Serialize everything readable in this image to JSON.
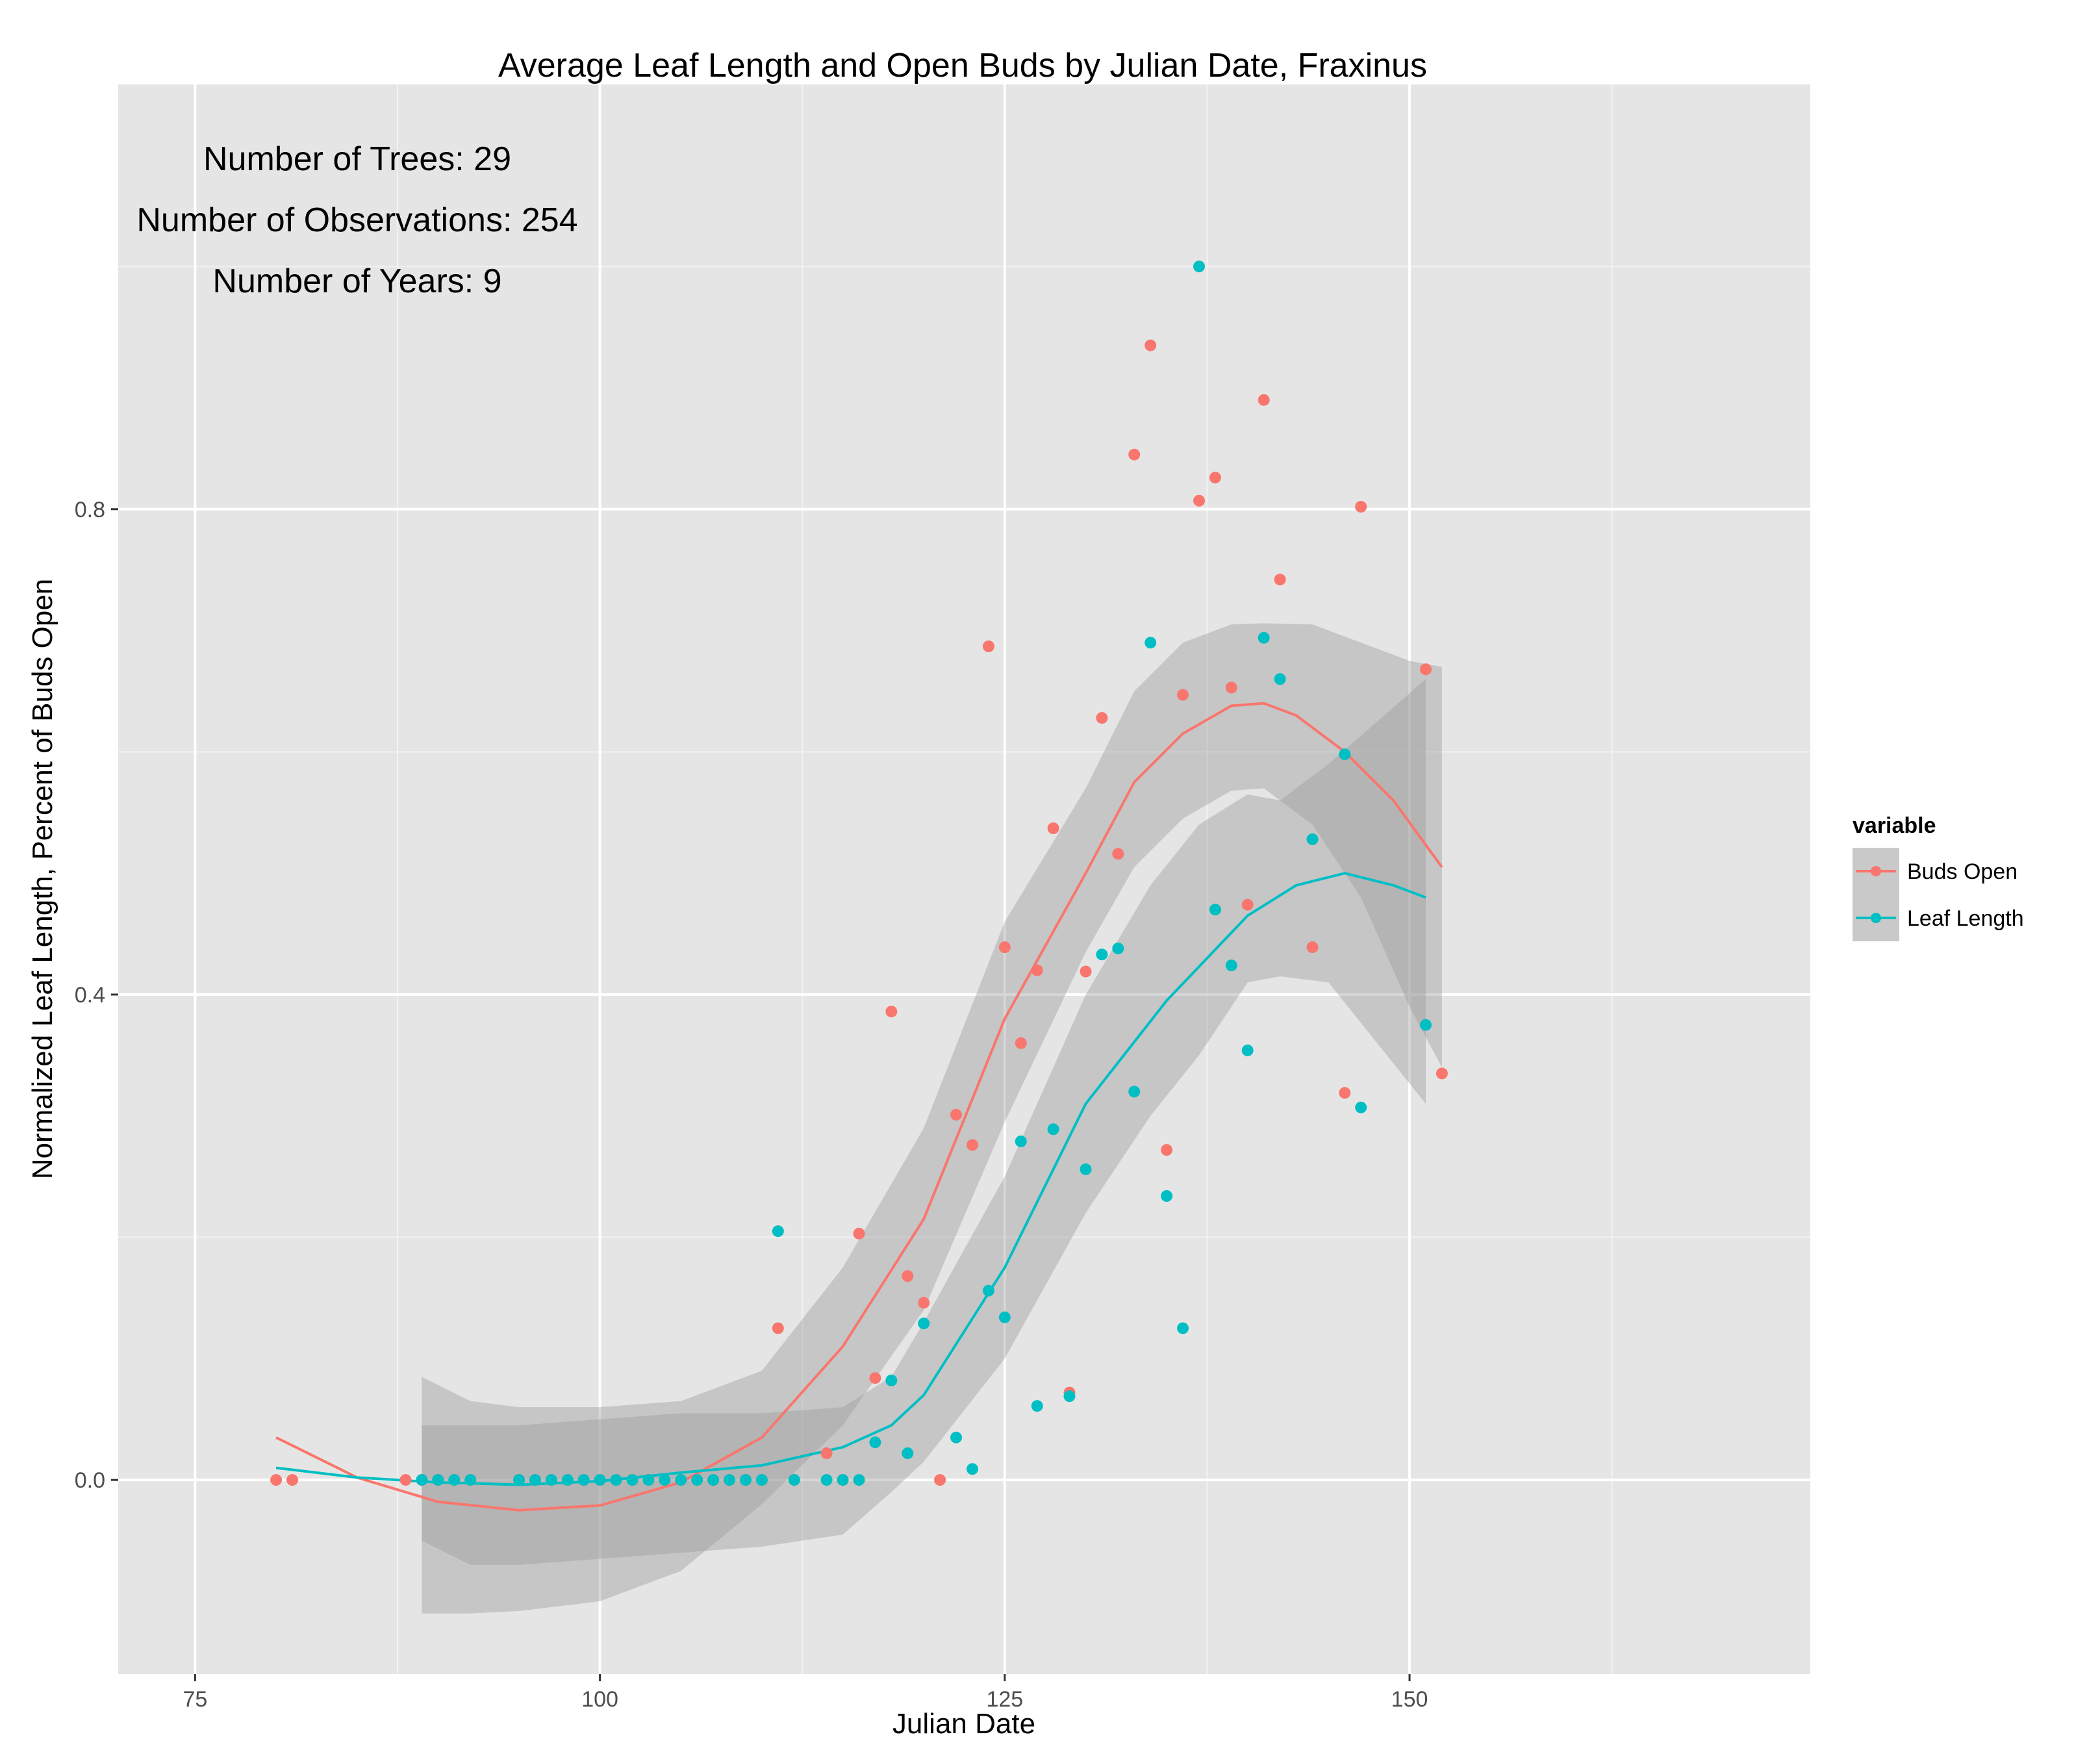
{
  "chart_data": {
    "type": "scatter",
    "title": "Average Leaf Length and Open Buds by Julian Date, Fraxinus",
    "xlabel": "Julian Date",
    "ylabel": "Normalized Leaf Length, Percent of Buds Open",
    "xlim": [
      70.25,
      174.75
    ],
    "ylim": [
      -0.16,
      1.15
    ],
    "x_ticks": [
      75,
      100,
      125,
      150
    ],
    "x_tick_labels": [
      "75",
      "100",
      "125",
      "150"
    ],
    "y_ticks": [
      0.0,
      0.4,
      0.8
    ],
    "y_tick_labels": [
      "0.0",
      "0.4",
      "0.8"
    ],
    "grid": true,
    "annotations": [
      "Number of Trees: 29",
      "Number of Observations: 254",
      "Number of Years: 9"
    ],
    "legend": {
      "title": "variable",
      "position": "right",
      "entries": [
        "Buds Open",
        "Leaf Length"
      ]
    },
    "series": [
      {
        "name": "Buds Open",
        "color": "#F8766D",
        "points": [
          [
            80,
            0
          ],
          [
            81,
            0
          ],
          [
            88,
            0
          ],
          [
            89,
            0
          ],
          [
            90,
            0
          ],
          [
            91,
            0
          ],
          [
            92,
            0
          ],
          [
            95,
            0
          ],
          [
            96,
            0
          ],
          [
            97,
            0
          ],
          [
            98,
            0
          ],
          [
            99,
            0
          ],
          [
            100,
            0
          ],
          [
            101,
            0
          ],
          [
            102,
            0
          ],
          [
            103,
            0
          ],
          [
            104,
            0
          ],
          [
            105,
            0
          ],
          [
            106,
            0
          ],
          [
            107,
            0
          ],
          [
            108,
            0
          ],
          [
            109,
            0
          ],
          [
            110,
            0
          ],
          [
            111,
            0.125
          ],
          [
            112,
            0
          ],
          [
            114,
            0.022
          ],
          [
            115,
            0
          ],
          [
            116,
            0.203
          ],
          [
            117,
            0.084
          ],
          [
            118,
            0.386
          ],
          [
            119,
            0.168
          ],
          [
            120,
            0.146
          ],
          [
            121,
            0
          ],
          [
            122,
            0.301
          ],
          [
            123,
            0.276
          ],
          [
            124,
            0.687
          ],
          [
            125,
            0.439
          ],
          [
            126,
            0.36
          ],
          [
            127,
            0.42
          ],
          [
            128,
            0.537
          ],
          [
            129,
            0.072
          ],
          [
            130,
            0.419
          ],
          [
            131,
            0.628
          ],
          [
            132,
            0.516
          ],
          [
            133,
            0.845
          ],
          [
            134,
            0.935
          ],
          [
            135,
            0.272
          ],
          [
            136,
            0.647
          ],
          [
            137,
            0.807
          ],
          [
            138,
            0.826
          ],
          [
            139,
            0.653
          ],
          [
            140,
            0.474
          ],
          [
            141,
            0.89
          ],
          [
            142,
            0.742
          ],
          [
            144,
            0.439
          ],
          [
            146,
            0.319
          ],
          [
            147,
            0.802
          ],
          [
            151,
            0.668
          ],
          [
            152,
            0.335
          ]
        ],
        "smooth": [
          [
            80,
            0.035
          ],
          [
            85,
            0.002
          ],
          [
            90,
            -0.018
          ],
          [
            95,
            -0.025
          ],
          [
            100,
            -0.021
          ],
          [
            105,
            -0.002
          ],
          [
            110,
            0.035
          ],
          [
            115,
            0.11
          ],
          [
            120,
            0.215
          ],
          [
            125,
            0.38
          ],
          [
            130,
            0.5
          ],
          [
            133,
            0.575
          ],
          [
            136,
            0.615
          ],
          [
            139,
            0.638
          ],
          [
            141,
            0.64
          ],
          [
            143,
            0.63
          ],
          [
            146,
            0.6
          ],
          [
            149,
            0.56
          ],
          [
            152,
            0.505
          ]
        ],
        "band_upper": [
          [
            89,
            0.085
          ],
          [
            92,
            0.065
          ],
          [
            95,
            0.06
          ],
          [
            100,
            0.06
          ],
          [
            105,
            0.065
          ],
          [
            110,
            0.09
          ],
          [
            115,
            0.175
          ],
          [
            120,
            0.29
          ],
          [
            125,
            0.46
          ],
          [
            130,
            0.57
          ],
          [
            133,
            0.65
          ],
          [
            136,
            0.69
          ],
          [
            139,
            0.705
          ],
          [
            141,
            0.706
          ],
          [
            144,
            0.705
          ],
          [
            147,
            0.69
          ],
          [
            150,
            0.675
          ],
          [
            152,
            0.67
          ]
        ],
        "band_lower": [
          [
            152,
            0.34
          ],
          [
            150,
            0.39
          ],
          [
            147,
            0.48
          ],
          [
            144,
            0.54
          ],
          [
            141,
            0.57
          ],
          [
            139,
            0.568
          ],
          [
            136,
            0.545
          ],
          [
            133,
            0.505
          ],
          [
            130,
            0.435
          ],
          [
            125,
            0.295
          ],
          [
            120,
            0.14
          ],
          [
            115,
            0.045
          ],
          [
            110,
            -0.02
          ],
          [
            105,
            -0.075
          ],
          [
            100,
            -0.1
          ],
          [
            95,
            -0.108
          ],
          [
            92,
            -0.11
          ],
          [
            89,
            -0.11
          ]
        ]
      },
      {
        "name": "Leaf Length",
        "color": "#00BFC4",
        "points": [
          [
            89,
            0
          ],
          [
            90,
            0
          ],
          [
            91,
            0
          ],
          [
            92,
            0
          ],
          [
            95,
            0
          ],
          [
            96,
            0
          ],
          [
            97,
            0
          ],
          [
            98,
            0
          ],
          [
            99,
            0
          ],
          [
            100,
            0
          ],
          [
            101,
            0
          ],
          [
            102,
            0
          ],
          [
            103,
            0
          ],
          [
            104,
            0
          ],
          [
            105,
            0
          ],
          [
            106,
            0
          ],
          [
            107,
            0
          ],
          [
            108,
            0
          ],
          [
            109,
            0
          ],
          [
            110,
            0
          ],
          [
            111,
            0.205
          ],
          [
            112,
            0
          ],
          [
            114,
            0
          ],
          [
            115,
            0
          ],
          [
            116,
            0
          ],
          [
            117,
            0.031
          ],
          [
            118,
            0.082
          ],
          [
            119,
            0.022
          ],
          [
            120,
            0.129
          ],
          [
            122,
            0.035
          ],
          [
            123,
            0.009
          ],
          [
            124,
            0.156
          ],
          [
            125,
            0.134
          ],
          [
            126,
            0.279
          ],
          [
            127,
            0.061
          ],
          [
            128,
            0.289
          ],
          [
            129,
            0.069
          ],
          [
            130,
            0.256
          ],
          [
            131,
            0.433
          ],
          [
            132,
            0.438
          ],
          [
            133,
            0.32
          ],
          [
            134,
            0.69
          ],
          [
            135,
            0.234
          ],
          [
            136,
            0.125
          ],
          [
            137,
            1.0
          ],
          [
            138,
            0.47
          ],
          [
            139,
            0.424
          ],
          [
            140,
            0.354
          ],
          [
            141,
            0.694
          ],
          [
            142,
            0.66
          ],
          [
            144,
            0.528
          ],
          [
            146,
            0.598
          ],
          [
            147,
            0.307
          ],
          [
            151,
            0.375
          ]
        ],
        "smooth": [
          [
            80,
            0.01
          ],
          [
            85,
            0.002
          ],
          [
            90,
            -0.002
          ],
          [
            95,
            -0.004
          ],
          [
            100,
            -0.001
          ],
          [
            105,
            0.006
          ],
          [
            110,
            0.012
          ],
          [
            115,
            0.027
          ],
          [
            118,
            0.045
          ],
          [
            120,
            0.07
          ],
          [
            125,
            0.175
          ],
          [
            130,
            0.31
          ],
          [
            135,
            0.395
          ],
          [
            140,
            0.465
          ],
          [
            143,
            0.49
          ],
          [
            146,
            0.5
          ],
          [
            149,
            0.49
          ],
          [
            151,
            0.48
          ]
        ],
        "band_upper": [
          [
            89,
            0.045
          ],
          [
            92,
            0.045
          ],
          [
            95,
            0.045
          ],
          [
            100,
            0.05
          ],
          [
            105,
            0.055
          ],
          [
            110,
            0.055
          ],
          [
            115,
            0.06
          ],
          [
            118,
            0.085
          ],
          [
            120,
            0.13
          ],
          [
            125,
            0.25
          ],
          [
            130,
            0.4
          ],
          [
            134,
            0.49
          ],
          [
            137,
            0.54
          ],
          [
            140,
            0.565
          ],
          [
            142,
            0.56
          ],
          [
            145,
            0.59
          ],
          [
            148,
            0.625
          ],
          [
            151,
            0.66
          ]
        ],
        "band_lower": [
          [
            151,
            0.31
          ],
          [
            148,
            0.36
          ],
          [
            145,
            0.41
          ],
          [
            142,
            0.415
          ],
          [
            140,
            0.41
          ],
          [
            137,
            0.35
          ],
          [
            134,
            0.3
          ],
          [
            130,
            0.22
          ],
          [
            125,
            0.1
          ],
          [
            120,
            0.015
          ],
          [
            118,
            -0.01
          ],
          [
            115,
            -0.045
          ],
          [
            110,
            -0.055
          ],
          [
            105,
            -0.06
          ],
          [
            100,
            -0.065
          ],
          [
            95,
            -0.07
          ],
          [
            92,
            -0.07
          ],
          [
            89,
            -0.05
          ]
        ]
      }
    ]
  }
}
